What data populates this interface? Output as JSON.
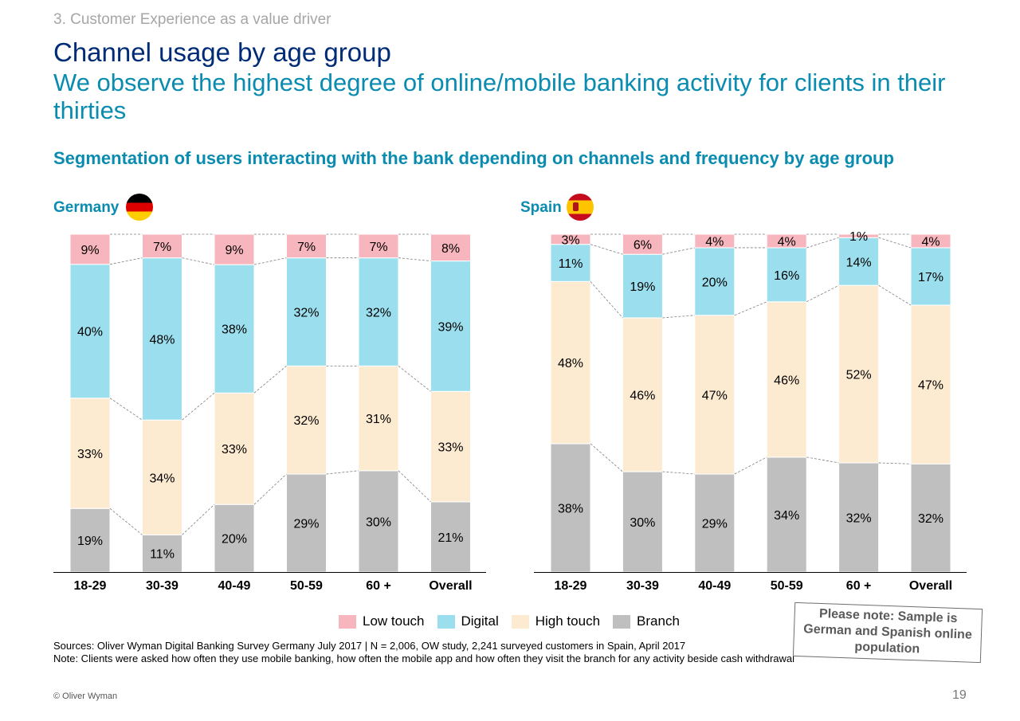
{
  "header": {
    "section": "3. Customer Experience as a value driver",
    "title": "Channel usage by age group",
    "subtitle": "We observe the highest degree of online/mobile banking activity for clients in their thirties"
  },
  "chart_heading": "Segmentation of users interacting with the bank depending on channels and frequency by age group",
  "colors": {
    "low_touch": "#f7b6bd",
    "digital": "#9bdfee",
    "high_touch": "#fdebd1",
    "branch": "#bfbfbf"
  },
  "chart_data": [
    {
      "type": "bar",
      "stacked": true,
      "normalized": true,
      "title": "Germany",
      "categories": [
        "18-29",
        "30-39",
        "40-49",
        "50-59",
        "60 +",
        "Overall"
      ],
      "series": [
        {
          "name": "Branch",
          "values": [
            19,
            11,
            20,
            29,
            30,
            21
          ]
        },
        {
          "name": "High touch",
          "values": [
            33,
            34,
            33,
            32,
            31,
            33
          ]
        },
        {
          "name": "Digital",
          "values": [
            40,
            48,
            38,
            32,
            32,
            39
          ]
        },
        {
          "name": "Low touch",
          "values": [
            9,
            7,
            9,
            7,
            7,
            8
          ]
        }
      ],
      "labels": [
        [
          "19%",
          "11%",
          "20%",
          "29%",
          "30%",
          "21%"
        ],
        [
          "33%",
          "34%",
          "33%",
          "32%",
          "31%",
          "33%"
        ],
        [
          "40%",
          "48%",
          "38%",
          "32%",
          "32%",
          "39%"
        ],
        [
          "9%",
          "7%",
          "9%",
          "7%",
          "7%",
          "8%"
        ]
      ]
    },
    {
      "type": "bar",
      "stacked": true,
      "normalized": true,
      "title": "Spain",
      "categories": [
        "18-29",
        "30-39",
        "40-49",
        "50-59",
        "60 +",
        "Overall"
      ],
      "series": [
        {
          "name": "Branch",
          "values": [
            38,
            30,
            29,
            34,
            32,
            32
          ]
        },
        {
          "name": "High touch",
          "values": [
            48,
            46,
            47,
            46,
            52,
            47
          ]
        },
        {
          "name": "Digital",
          "values": [
            11,
            19,
            20,
            16,
            14,
            17
          ]
        },
        {
          "name": "Low touch",
          "values": [
            3,
            6,
            4,
            4,
            1,
            4
          ]
        }
      ],
      "labels": [
        [
          "38%",
          "30%",
          "29%",
          "34%",
          "32%",
          "32%"
        ],
        [
          "48%",
          "46%",
          "47%",
          "46%",
          "52%",
          "47%"
        ],
        [
          "11%",
          "19%",
          "20%",
          "16%",
          "14%",
          "17%"
        ],
        [
          "3%",
          "6%",
          "4%",
          "4%",
          "1%",
          "4%"
        ]
      ]
    }
  ],
  "legend": [
    {
      "label": "Low touch",
      "color": "#f7b6bd"
    },
    {
      "label": "Digital",
      "color": "#9bdfee"
    },
    {
      "label": "High touch",
      "color": "#fdebd1"
    },
    {
      "label": "Branch",
      "color": "#bfbfbf"
    }
  ],
  "sources_line1": "Sources: Oliver Wyman Digital Banking Survey Germany July 2017  |  N = 2,006, OW study, 2,241 surveyed customers in Spain, April 2017",
  "sources_line2": "Note: Clients were asked how often they use mobile banking, how often the mobile app and how often they visit the branch for any activity beside cash withdrawal",
  "note_box": "Please note: Sample is German and Spanish online population",
  "footer": {
    "copyright": "© Oliver Wyman",
    "page": "19"
  }
}
